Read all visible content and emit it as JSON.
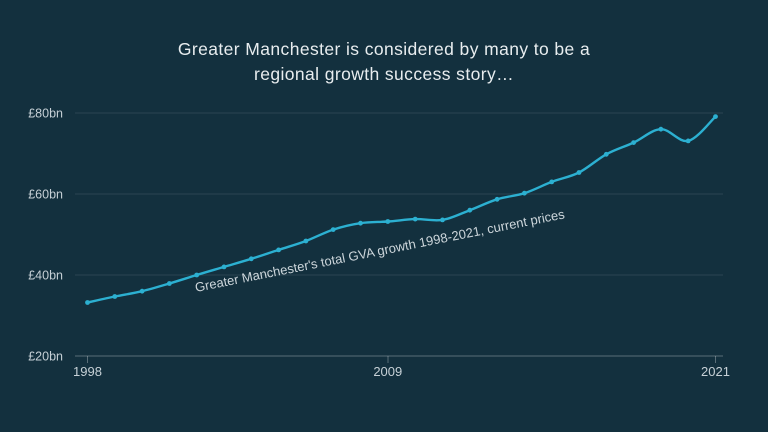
{
  "title": {
    "line1": "Greater Manchester is considered by many to be a",
    "line2": "regional growth success story…"
  },
  "colors": {
    "background": "#13303e",
    "line": "#2cb0d1",
    "grid": "rgba(255,255,255,0.10)",
    "axis": "rgba(255,255,255,0.30)",
    "title_text": "#e8edef",
    "axis_label_text": "#c6d0d6",
    "series_label_text": "#cdd6db"
  },
  "chart_data": {
    "type": "line",
    "title": "Greater Manchester's total GVA growth 1998-2021, current prices",
    "series_label": "Greater Manchester's total GVA growth 1998-2021, current prices",
    "unit": "£bn",
    "x": [
      1998,
      1999,
      2000,
      2001,
      2002,
      2003,
      2004,
      2005,
      2006,
      2007,
      2008,
      2009,
      2010,
      2011,
      2012,
      2013,
      2014,
      2015,
      2016,
      2017,
      2018,
      2019,
      2020,
      2021
    ],
    "values": [
      33.2,
      34.7,
      36.0,
      37.9,
      40.0,
      42.0,
      44.0,
      46.2,
      48.4,
      51.2,
      52.8,
      53.2,
      53.8,
      53.6,
      56.0,
      58.7,
      60.2,
      63.0,
      65.3,
      69.8,
      72.7,
      76.0,
      73.1,
      79.1
    ],
    "xlim": [
      1998,
      2021
    ],
    "ylim": [
      20,
      80
    ],
    "y_ticks": [
      {
        "value": 80,
        "label": "£80bn"
      },
      {
        "value": 60,
        "label": "£60bn"
      },
      {
        "value": 40,
        "label": "£40bn"
      },
      {
        "value": 20,
        "label": "£20bn"
      }
    ],
    "x_ticks": [
      {
        "value": 1998,
        "label": "1998"
      },
      {
        "value": 2009,
        "label": "2009"
      },
      {
        "value": 2021,
        "label": "2021"
      }
    ],
    "grid": "horizontal gridlines only",
    "legend": "none (rotated inline series label along the line)",
    "marker": "point markers on every year"
  }
}
